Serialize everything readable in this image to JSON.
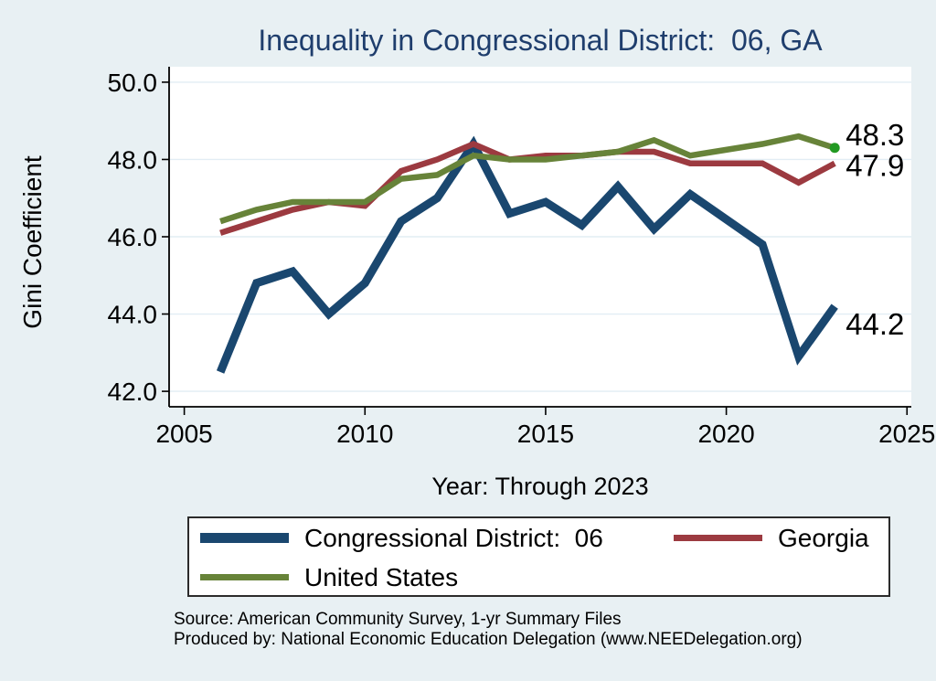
{
  "chart_data": {
    "type": "line",
    "title": "Inequality in Congressional District:  06, GA",
    "xlabel": "Year: Through 2023",
    "ylabel": "Gini Coefficient",
    "x": [
      2006,
      2007,
      2008,
      2009,
      2010,
      2011,
      2012,
      2013,
      2014,
      2015,
      2016,
      2017,
      2018,
      2019,
      2021,
      2022,
      2023
    ],
    "series": [
      {
        "name": "Congressional District:  06",
        "color": "#1a476f",
        "line_width": 9,
        "values": [
          42.5,
          44.8,
          45.1,
          44.0,
          44.8,
          46.4,
          47.0,
          48.4,
          46.6,
          46.9,
          46.3,
          47.3,
          46.2,
          47.1,
          45.8,
          42.9,
          44.2
        ],
        "end_label": "44.2",
        "end_marker": false
      },
      {
        "name": "Georgia",
        "color": "#9c3a40",
        "line_width": 6.5,
        "values": [
          46.1,
          46.4,
          46.7,
          46.9,
          46.8,
          47.7,
          48.0,
          48.4,
          48.0,
          48.1,
          48.1,
          48.2,
          48.2,
          47.9,
          47.9,
          47.4,
          47.9
        ],
        "end_label": "47.9",
        "end_marker": false
      },
      {
        "name": "United States",
        "color": "#678339",
        "line_width": 6.5,
        "values": [
          46.4,
          46.7,
          46.9,
          46.9,
          46.9,
          47.5,
          47.6,
          48.1,
          48.0,
          48.0,
          48.1,
          48.2,
          48.5,
          48.1,
          48.4,
          48.6,
          48.3
        ],
        "end_label": "48.3",
        "end_marker": true
      }
    ],
    "end_marker_color": "#229922",
    "xticks": {
      "values": [
        2005,
        2010,
        2015,
        2020,
        2025
      ],
      "labels": [
        "2005",
        "2010",
        "2015",
        "2020",
        "2025"
      ]
    },
    "yticks": {
      "values": [
        42,
        44,
        46,
        48,
        50
      ],
      "labels": [
        "42.0",
        "44.0",
        "46.0",
        "48.0",
        "50.0"
      ]
    },
    "xlim": [
      2004.58,
      2025.12
    ],
    "ylim": [
      41.6,
      50.4
    ],
    "grid": "horizontal",
    "grid_color": "#e2edf4",
    "plot_background": "#ffffff",
    "page_background": "#e8f0f3",
    "title_color": "#1f3e6d",
    "legend_position": "bottom"
  },
  "footer": {
    "source_line": "Source: American Community Survey, 1-yr Summary Files",
    "produced_line": "Produced by: National Economic Education Delegation (www.NEEDelegation.org)"
  }
}
